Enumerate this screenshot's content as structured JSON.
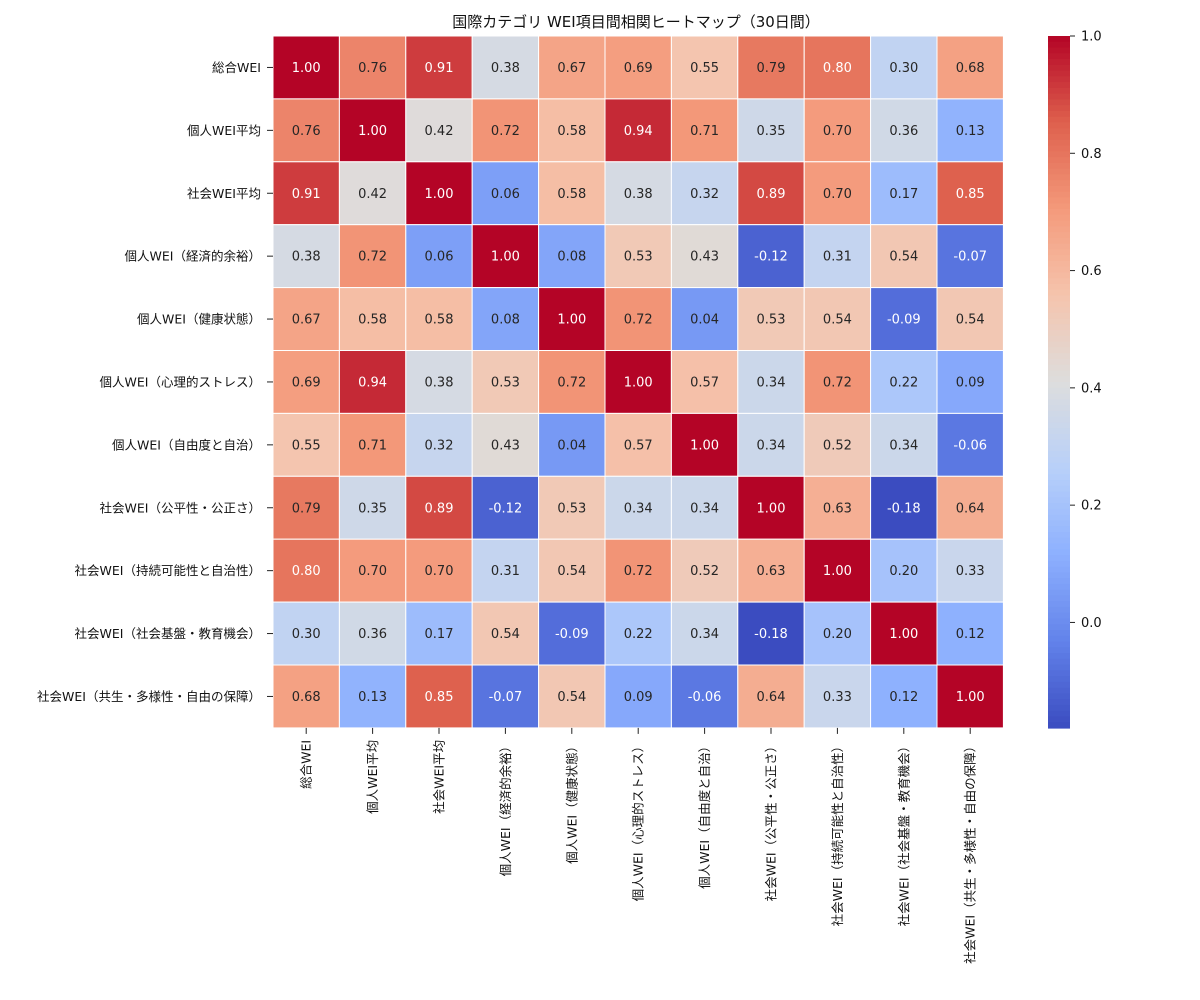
{
  "chart_data": {
    "type": "heatmap",
    "title": "国際カテゴリ WEI項目間相関ヒートマップ（30日間）",
    "labels": [
      "総合WEI",
      "個人WEI平均",
      "社会WEI平均",
      "個人WEI（経済的余裕）",
      "個人WEI（健康状態）",
      "個人WEI（心理的ストレス）",
      "個人WEI（自由度と自治）",
      "社会WEI（公平性・公正さ）",
      "社会WEI（持続可能性と自治性）",
      "社会WEI（社会基盤・教育機会）",
      "社会WEI（共生・多様性・自由の保障）"
    ],
    "matrix": [
      [
        1.0,
        0.76,
        0.91,
        0.38,
        0.67,
        0.69,
        0.55,
        0.79,
        0.8,
        0.3,
        0.68
      ],
      [
        0.76,
        1.0,
        0.42,
        0.72,
        0.58,
        0.94,
        0.71,
        0.35,
        0.7,
        0.36,
        0.13
      ],
      [
        0.91,
        0.42,
        1.0,
        0.06,
        0.58,
        0.38,
        0.32,
        0.89,
        0.7,
        0.17,
        0.85
      ],
      [
        0.38,
        0.72,
        0.06,
        1.0,
        0.08,
        0.53,
        0.43,
        -0.12,
        0.31,
        0.54,
        -0.07
      ],
      [
        0.67,
        0.58,
        0.58,
        0.08,
        1.0,
        0.72,
        0.04,
        0.53,
        0.54,
        -0.09,
        0.54
      ],
      [
        0.69,
        0.94,
        0.38,
        0.53,
        0.72,
        1.0,
        0.57,
        0.34,
        0.72,
        0.22,
        0.09
      ],
      [
        0.55,
        0.71,
        0.32,
        0.43,
        0.04,
        0.57,
        1.0,
        0.34,
        0.52,
        0.34,
        -0.06
      ],
      [
        0.79,
        0.35,
        0.89,
        -0.12,
        0.53,
        0.34,
        0.34,
        1.0,
        0.63,
        -0.18,
        0.64
      ],
      [
        0.8,
        0.7,
        0.7,
        0.31,
        0.54,
        0.72,
        0.52,
        0.63,
        1.0,
        0.2,
        0.33
      ],
      [
        0.3,
        0.36,
        0.17,
        0.54,
        -0.09,
        0.22,
        0.34,
        -0.18,
        0.2,
        1.0,
        0.12
      ],
      [
        0.68,
        0.13,
        0.85,
        -0.07,
        0.54,
        0.09,
        -0.06,
        0.64,
        0.33,
        0.12,
        1.0
      ]
    ],
    "colormap": "coolwarm",
    "vmin": -0.18,
    "vmax": 1.0,
    "colorbar_ticks": [
      0.0,
      0.2,
      0.4,
      0.6,
      0.8,
      1.0
    ],
    "colorbar_tick_labels": [
      "0.0",
      "0.2",
      "0.4",
      "0.6",
      "0.8",
      "1.0"
    ],
    "annotation_format": "2 decimals",
    "grid": false,
    "legend": "colorbar-right"
  }
}
